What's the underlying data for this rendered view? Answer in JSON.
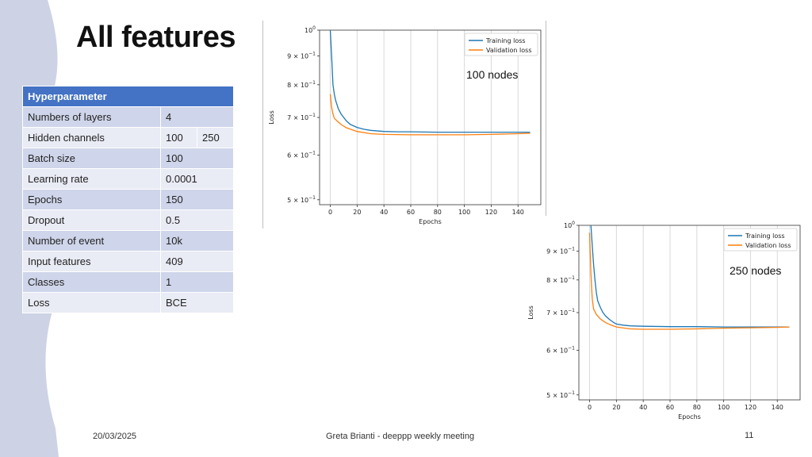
{
  "slide": {
    "title": "All features",
    "footer_date": "20/03/2025",
    "footer_center": "Greta Brianti - deeppp weekly meeting",
    "page_number": "11",
    "colors": {
      "accent": "#4472c4",
      "deco": "#cdd3e5",
      "training": "#1f77b4",
      "validation": "#ff7f0e"
    }
  },
  "table": {
    "header": "Hyperparameter",
    "rows": [
      {
        "label": "Numbers of layers",
        "values": [
          "4"
        ]
      },
      {
        "label": "Hidden channels",
        "values": [
          "100",
          "250"
        ]
      },
      {
        "label": "Batch size",
        "values": [
          "100"
        ]
      },
      {
        "label": "Learning rate",
        "values": [
          "0.0001"
        ]
      },
      {
        "label": "Epochs",
        "values": [
          "150"
        ]
      },
      {
        "label": "Dropout",
        "values": [
          "0.5"
        ]
      },
      {
        "label": "Number of event",
        "values": [
          "10k"
        ]
      },
      {
        "label": "Input features",
        "values": [
          "409"
        ]
      },
      {
        "label": "Classes",
        "values": [
          "1"
        ]
      },
      {
        "label": "Loss",
        "values": [
          "BCE"
        ]
      }
    ]
  },
  "chart_data": [
    {
      "type": "line",
      "annotation": "100 nodes",
      "xlabel": "Epochs",
      "ylabel": "Loss",
      "yscale": "log",
      "xlim": [
        -8,
        157
      ],
      "ylim": [
        0.49,
        1.0
      ],
      "xticks": [
        0,
        20,
        40,
        60,
        80,
        100,
        120,
        140
      ],
      "yticks": [
        {
          "value": 1.0,
          "base": "10",
          "exp": "0"
        },
        {
          "value": 0.9,
          "base": "9 × 10",
          "exp": "−1"
        },
        {
          "value": 0.8,
          "base": "8 × 10",
          "exp": "−1"
        },
        {
          "value": 0.7,
          "base": "7 × 10",
          "exp": "−1"
        },
        {
          "value": 0.6,
          "base": "6 × 10",
          "exp": "−1"
        },
        {
          "value": 0.5,
          "base": "5 × 10",
          "exp": "−1"
        }
      ],
      "grid": "vertical",
      "legend_position": "top-right",
      "series": [
        {
          "name": "Training loss",
          "color": "#1f77b4",
          "x": [
            0,
            1,
            2,
            3,
            4,
            6,
            8,
            10,
            12,
            15,
            20,
            25,
            30,
            40,
            50,
            60,
            80,
            100,
            120,
            140,
            149
          ],
          "y": [
            1.0,
            0.9,
            0.8,
            0.77,
            0.75,
            0.725,
            0.71,
            0.7,
            0.69,
            0.68,
            0.672,
            0.667,
            0.664,
            0.661,
            0.66,
            0.66,
            0.659,
            0.659,
            0.659,
            0.659,
            0.659
          ]
        },
        {
          "name": "Validation loss",
          "color": "#ff7f0e",
          "x": [
            0,
            1,
            2,
            3,
            5,
            8,
            12,
            20,
            30,
            40,
            60,
            80,
            100,
            120,
            140,
            149
          ],
          "y": [
            0.77,
            0.73,
            0.71,
            0.698,
            0.69,
            0.68,
            0.671,
            0.661,
            0.655,
            0.653,
            0.652,
            0.652,
            0.652,
            0.653,
            0.655,
            0.656
          ]
        }
      ]
    },
    {
      "type": "line",
      "annotation": "250 nodes",
      "xlabel": "Epochs",
      "ylabel": "Loss",
      "yscale": "log",
      "xlim": [
        -8,
        157
      ],
      "ylim": [
        0.49,
        1.0
      ],
      "xticks": [
        0,
        20,
        40,
        60,
        80,
        100,
        120,
        140
      ],
      "yticks": [
        {
          "value": 1.0,
          "base": "10",
          "exp": "0"
        },
        {
          "value": 0.9,
          "base": "9 × 10",
          "exp": "−1"
        },
        {
          "value": 0.8,
          "base": "8 × 10",
          "exp": "−1"
        },
        {
          "value": 0.7,
          "base": "7 × 10",
          "exp": "−1"
        },
        {
          "value": 0.6,
          "base": "6 × 10",
          "exp": "−1"
        },
        {
          "value": 0.5,
          "base": "5 × 10",
          "exp": "−1"
        }
      ],
      "grid": "vertical",
      "legend_position": "top-right",
      "series": [
        {
          "name": "Training loss",
          "color": "#1f77b4",
          "x": [
            1,
            2,
            3,
            4,
            5,
            6,
            8,
            10,
            12,
            15,
            18,
            20,
            25,
            30,
            40,
            60,
            80,
            100,
            120,
            140,
            149
          ],
          "y": [
            1.0,
            0.92,
            0.85,
            0.8,
            0.76,
            0.735,
            0.715,
            0.7,
            0.69,
            0.68,
            0.672,
            0.668,
            0.665,
            0.663,
            0.662,
            0.661,
            0.661,
            0.66,
            0.66,
            0.66,
            0.66
          ]
        },
        {
          "name": "Validation loss",
          "color": "#ff7f0e",
          "x": [
            0,
            1,
            2,
            3,
            5,
            8,
            12,
            16,
            20,
            30,
            40,
            60,
            80,
            100,
            120,
            140,
            149
          ],
          "y": [
            0.97,
            0.82,
            0.74,
            0.71,
            0.695,
            0.682,
            0.672,
            0.665,
            0.66,
            0.655,
            0.654,
            0.654,
            0.655,
            0.657,
            0.658,
            0.659,
            0.66
          ]
        }
      ]
    }
  ]
}
